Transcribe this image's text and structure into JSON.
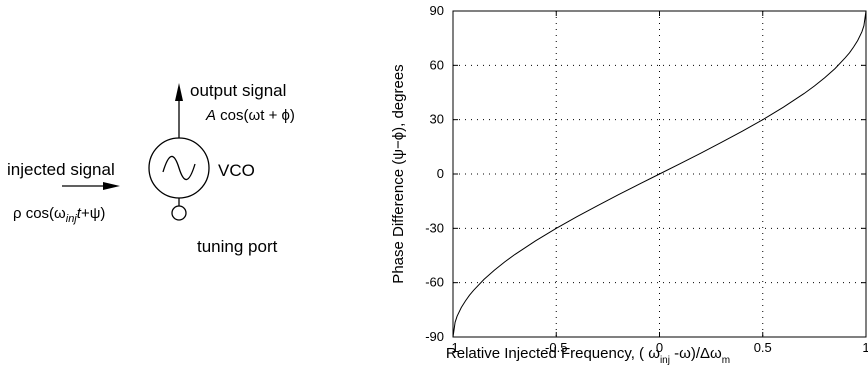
{
  "diagram": {
    "output_label": "output signal",
    "output_eq": {
      "amp": "A",
      "pre": " cos(ωt + ϕ)"
    },
    "injected_label": "injected signal",
    "injected_eq": {
      "pre": "ρ cos(ω",
      "sub": "inj",
      "mid": "t",
      "post": "+ψ)"
    },
    "vco_label": "VCO",
    "tuning_label": "tuning port"
  },
  "chart_data": {
    "type": "line",
    "title": "",
    "xlim": [
      -1,
      1
    ],
    "ylim": [
      -90,
      90
    ],
    "x_ticks": [
      -1,
      -0.5,
      0,
      0.5,
      1
    ],
    "y_ticks": [
      -90,
      -60,
      -30,
      0,
      30,
      60,
      90
    ],
    "grid": true,
    "ylabel": "Phase Difference (ψ−ϕ), degrees",
    "xlabel": {
      "pre": "Relative Injected Frequency, ( ω",
      "sub1": "inj",
      "mid": " -ω)/Δω",
      "sub2": "m"
    },
    "series": [
      {
        "x": [
          -1,
          -0.99,
          -0.98,
          -0.96,
          -0.94,
          -0.92,
          -0.9,
          -0.85,
          -0.8,
          -0.75,
          -0.7,
          -0.6,
          -0.5,
          -0.4,
          -0.3,
          -0.2,
          -0.1,
          0,
          0.1,
          0.2,
          0.3,
          0.4,
          0.5,
          0.6,
          0.7,
          0.75,
          0.8,
          0.85,
          0.9,
          0.92,
          0.94,
          0.96,
          0.98,
          0.99,
          1
        ],
        "y": [
          -90,
          -81.9,
          -78.5,
          -73.7,
          -70.1,
          -66.9,
          -64.2,
          -58.2,
          -53.1,
          -48.6,
          -44.4,
          -36.9,
          -30,
          -23.6,
          -17.5,
          -11.5,
          -5.7,
          0,
          5.7,
          11.5,
          17.5,
          23.6,
          30,
          36.9,
          44.4,
          48.6,
          53.1,
          58.2,
          64.2,
          66.9,
          70.1,
          73.7,
          78.5,
          81.9,
          90
        ]
      }
    ]
  }
}
